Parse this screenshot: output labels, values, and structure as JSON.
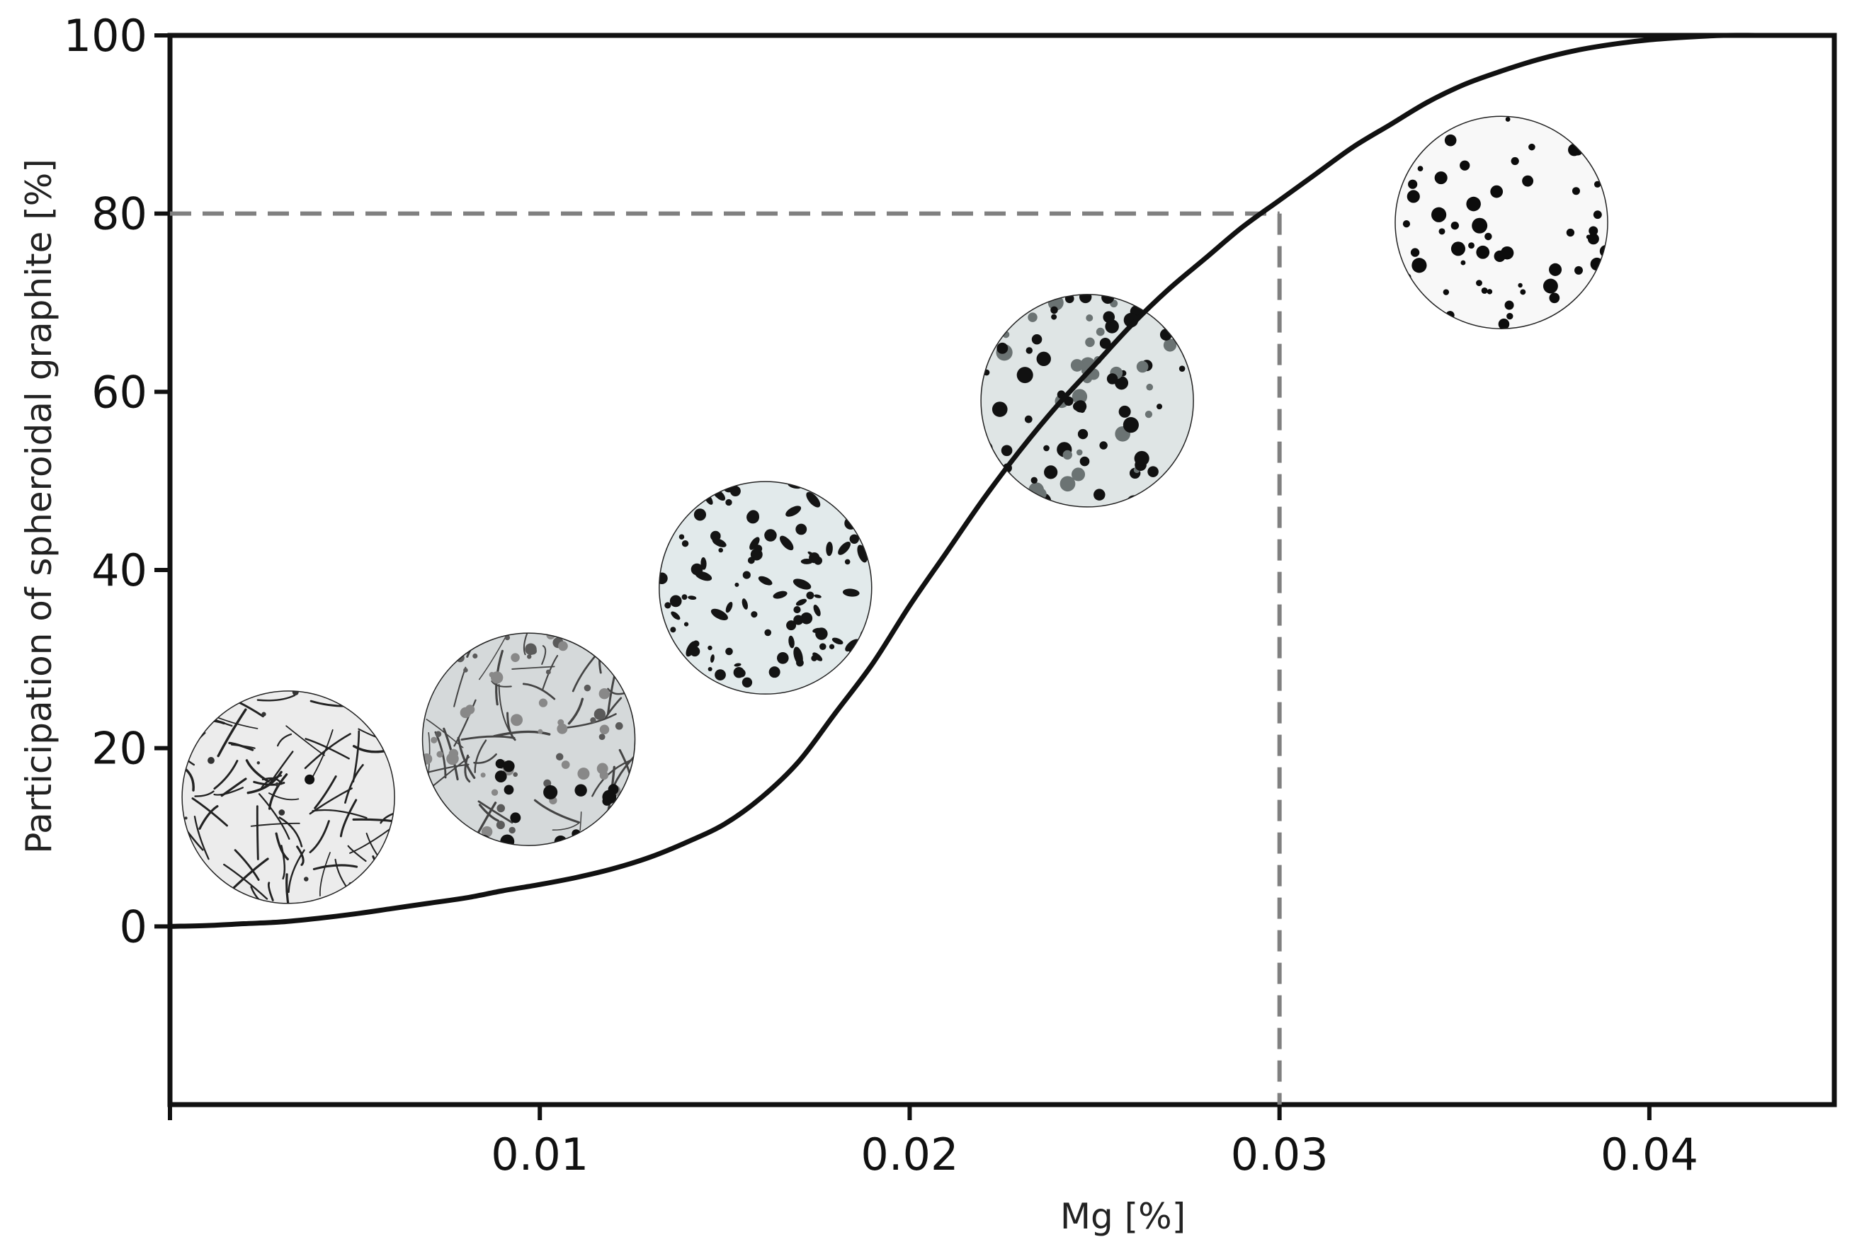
{
  "chart_data": {
    "type": "line",
    "title": "",
    "xlabel": "Mg [%]",
    "ylabel": "Participation of spheroidal graphite [%]",
    "xlim": [
      0.0,
      0.045
    ],
    "ylim": [
      -20,
      100
    ],
    "xticks": [
      0.01,
      0.02,
      0.03,
      0.04
    ],
    "xtick_labels": [
      "0.01",
      "0.02",
      "0.03",
      "0.04"
    ],
    "yticks": [
      0,
      20,
      40,
      60,
      80,
      100
    ],
    "ytick_labels": [
      "0",
      "20",
      "40",
      "60",
      "80",
      "100"
    ],
    "grid": false,
    "series": [
      {
        "x": [
          0,
          0.001,
          0.002,
          0.003,
          0.004,
          0.005,
          0.006,
          0.007,
          0.008,
          0.009,
          0.01,
          0.011,
          0.012,
          0.013,
          0.014,
          0.015,
          0.016,
          0.017,
          0.018,
          0.019,
          0.02,
          0.021,
          0.022,
          0.023,
          0.024,
          0.025,
          0.026,
          0.027,
          0.028,
          0.029,
          0.03,
          0.031,
          0.032,
          0.033,
          0.034,
          0.035,
          0.036,
          0.037,
          0.038,
          0.039,
          0.04,
          0.041,
          0.042,
          0.043,
          0.044,
          0.045
        ],
        "y": [
          0,
          0.1,
          0.3,
          0.5,
          0.9,
          1.4,
          2.0,
          2.6,
          3.2,
          4.0,
          4.7,
          5.5,
          6.5,
          7.8,
          9.5,
          11.5,
          14.5,
          18.5,
          24,
          29.5,
          36,
          42,
          48,
          53.5,
          58.5,
          63,
          67.5,
          71.5,
          75,
          78.5,
          81.5,
          84.5,
          87.5,
          90,
          92.5,
          94.5,
          96,
          97.3,
          98.3,
          99,
          99.5,
          99.8,
          100,
          100,
          100,
          100
        ],
        "color": "#111111"
      }
    ],
    "reference_lines": {
      "x": 0.03,
      "y": 80,
      "style": "dashed",
      "color": "#808080"
    },
    "micrograph_insets": [
      {
        "x": 0.0032,
        "y": 14.5,
        "pattern": "flake",
        "background": "#ececec"
      },
      {
        "x": 0.0097,
        "y": 21.0,
        "pattern": "mixed",
        "background": "#d5d9da"
      },
      {
        "x": 0.0161,
        "y": 38.0,
        "pattern": "compacted",
        "background": "#e2eaeb"
      },
      {
        "x": 0.0248,
        "y": 59.0,
        "pattern": "nodular",
        "background": "#dfe5e5"
      },
      {
        "x": 0.036,
        "y": 79.0,
        "pattern": "spheroidal",
        "background": "#f8f8f8"
      }
    ]
  }
}
